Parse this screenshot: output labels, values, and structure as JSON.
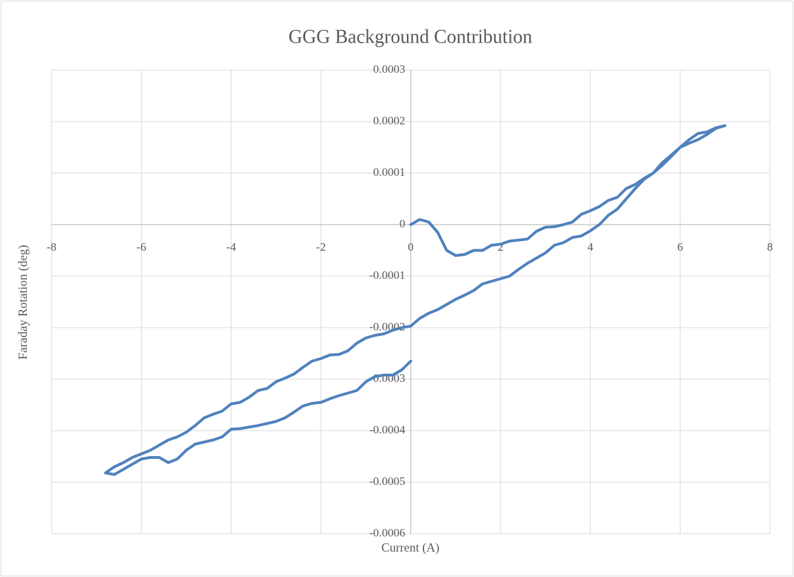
{
  "chart_data": {
    "type": "line",
    "title": "GGG Background Contribution",
    "xlabel": "Current (A)",
    "ylabel": "Faraday Rotation (deg)",
    "color": "#4f81bd",
    "grid": true,
    "xlim": [
      -8,
      8
    ],
    "xticks": [
      -8,
      -6,
      -4,
      -2,
      0,
      2,
      4,
      6,
      8
    ],
    "ylim": [
      -0.0006,
      0.0003
    ],
    "yticks": [
      -0.0006,
      -0.0005,
      -0.0004,
      -0.0003,
      -0.0002,
      -0.0001,
      0,
      0.0001,
      0.0002,
      0.0003
    ],
    "x": [
      0,
      0.2,
      0.4,
      0.6,
      0.8,
      1.0,
      1.2,
      1.4,
      1.6,
      1.8,
      2.0,
      2.2,
      2.4,
      2.6,
      2.8,
      3.0,
      3.2,
      3.4,
      3.6,
      3.8,
      4.0,
      4.2,
      4.4,
      4.6,
      4.8,
      5.0,
      5.2,
      5.4,
      5.6,
      5.8,
      6.0,
      6.2,
      6.4,
      6.6,
      6.8,
      7.0,
      6.8,
      6.6,
      6.4,
      6.2,
      6.0,
      5.8,
      5.6,
      5.4,
      5.2,
      5.0,
      4.8,
      4.6,
      4.4,
      4.2,
      4.0,
      3.8,
      3.6,
      3.4,
      3.2,
      3.0,
      2.8,
      2.6,
      2.4,
      2.2,
      2.0,
      1.8,
      1.6,
      1.4,
      1.2,
      1.0,
      0.8,
      0.6,
      0.4,
      0.2,
      0,
      -0.2,
      -0.4,
      -0.6,
      -0.8,
      -1.0,
      -1.2,
      -1.4,
      -1.6,
      -1.8,
      -2.0,
      -2.2,
      -2.4,
      -2.6,
      -2.8,
      -3.0,
      -3.2,
      -3.4,
      -3.6,
      -3.8,
      -4.0,
      -4.2,
      -4.4,
      -4.6,
      -4.8,
      -5.0,
      -5.2,
      -5.4,
      -5.6,
      -5.8,
      -6.0,
      -6.2,
      -6.4,
      -6.6,
      -6.8,
      -6.6,
      -6.4,
      -6.2,
      -6.0,
      -5.8,
      -5.6,
      -5.4,
      -5.2,
      -5.0,
      -4.8,
      -4.6,
      -4.4,
      -4.2,
      -4.0,
      -3.8,
      -3.6,
      -3.4,
      -3.2,
      -3.0,
      -2.8,
      -2.6,
      -2.4,
      -2.2,
      -2.0,
      -1.8,
      -1.6,
      -1.4,
      -1.2,
      -1.0,
      -0.8,
      -0.6,
      -0.4,
      -0.2,
      0
    ],
    "values": [
      0,
      1e-05,
      5e-06,
      -1.5e-05,
      -5e-05,
      -6e-05,
      -5.8e-05,
      -5e-05,
      -5e-05,
      -4e-05,
      -3.8e-05,
      -3.2e-05,
      -3e-05,
      -2.8e-05,
      -1.3e-05,
      -5e-06,
      -4e-06,
      0,
      5e-06,
      2e-05,
      2.7e-05,
      3.5e-05,
      4.7e-05,
      5.3e-05,
      7e-05,
      7.8e-05,
      9e-05,
      0.0001,
      0.00012,
      0.000135,
      0.00015,
      0.000165,
      0.000177,
      0.00018,
      0.000188,
      0.000192,
      0.000187,
      0.000175,
      0.000165,
      0.000158,
      0.00015,
      0.000132,
      0.000115,
      0.0001,
      8.8e-05,
      7e-05,
      5e-05,
      3e-05,
      1.8e-05,
      0,
      -1.2e-05,
      -2.2e-05,
      -2.5e-05,
      -3.5e-05,
      -4e-05,
      -5.5e-05,
      -6.5e-05,
      -7.5e-05,
      -8.7e-05,
      -0.0001,
      -0.000105,
      -0.00011,
      -0.000115,
      -0.000128,
      -0.000137,
      -0.000145,
      -0.000155,
      -0.000165,
      -0.000172,
      -0.000182,
      -0.000197,
      -0.0002,
      -0.000205,
      -0.000212,
      -0.000215,
      -0.00022,
      -0.00023,
      -0.000245,
      -0.000252,
      -0.000253,
      -0.00026,
      -0.000265,
      -0.000277,
      -0.00029,
      -0.000298,
      -0.000305,
      -0.000318,
      -0.000322,
      -0.000335,
      -0.000345,
      -0.000348,
      -0.000362,
      -0.000368,
      -0.000375,
      -0.00039,
      -0.000403,
      -0.000412,
      -0.000418,
      -0.000428,
      -0.000438,
      -0.000445,
      -0.000452,
      -0.000462,
      -0.00047,
      -0.000482,
      -0.000485,
      -0.000475,
      -0.000465,
      -0.000455,
      -0.000452,
      -0.000452,
      -0.000462,
      -0.000455,
      -0.000438,
      -0.000426,
      -0.000422,
      -0.000418,
      -0.000412,
      -0.000397,
      -0.000396,
      -0.000393,
      -0.00039,
      -0.000386,
      -0.000382,
      -0.000375,
      -0.000364,
      -0.000352,
      -0.000347,
      -0.000345,
      -0.000338,
      -0.000332,
      -0.000327,
      -0.000322,
      -0.000305,
      -0.000295,
      -0.000292,
      -0.000292,
      -0.000282,
      -0.000265
    ]
  }
}
